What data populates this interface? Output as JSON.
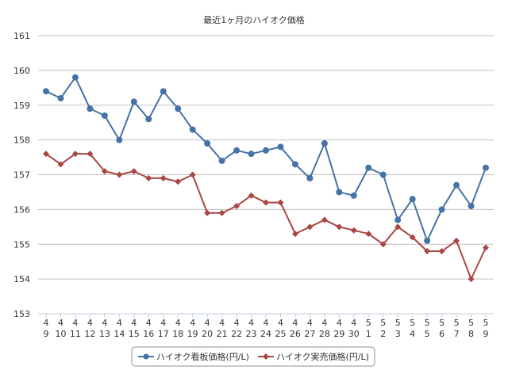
{
  "chart_data": {
    "type": "line",
    "title": "最近1ヶ月のハイオク価格",
    "xlabel": "",
    "ylabel": "",
    "ylim": [
      153,
      161
    ],
    "yticks": [
      153,
      154,
      155,
      156,
      157,
      158,
      159,
      160,
      161
    ],
    "grid": true,
    "legend_position": "bottom",
    "categories": [
      [
        "4",
        "9"
      ],
      [
        "4",
        "10"
      ],
      [
        "4",
        "11"
      ],
      [
        "4",
        "12"
      ],
      [
        "4",
        "13"
      ],
      [
        "4",
        "14"
      ],
      [
        "4",
        "15"
      ],
      [
        "4",
        "16"
      ],
      [
        "4",
        "17"
      ],
      [
        "4",
        "18"
      ],
      [
        "4",
        "19"
      ],
      [
        "4",
        "20"
      ],
      [
        "4",
        "21"
      ],
      [
        "4",
        "22"
      ],
      [
        "4",
        "23"
      ],
      [
        "4",
        "24"
      ],
      [
        "4",
        "25"
      ],
      [
        "4",
        "26"
      ],
      [
        "4",
        "27"
      ],
      [
        "4",
        "28"
      ],
      [
        "4",
        "29"
      ],
      [
        "4",
        "30"
      ],
      [
        "5",
        "1"
      ],
      [
        "5",
        "2"
      ],
      [
        "5",
        "3"
      ],
      [
        "5",
        "4"
      ],
      [
        "5",
        "5"
      ],
      [
        "5",
        "6"
      ],
      [
        "5",
        "7"
      ],
      [
        "5",
        "8"
      ],
      [
        "5",
        "9"
      ]
    ],
    "series": [
      {
        "name": "ハイオク看板価格(円/L)",
        "color": "#4572a7",
        "marker": "circle",
        "values": [
          159.4,
          159.2,
          159.8,
          158.9,
          158.7,
          158.0,
          159.1,
          158.6,
          159.4,
          158.9,
          158.3,
          157.9,
          157.4,
          157.7,
          157.6,
          157.7,
          157.8,
          157.3,
          156.9,
          157.9,
          156.5,
          156.4,
          157.2,
          157.0,
          155.7,
          156.3,
          155.1,
          156.0,
          156.7,
          156.1,
          157.2
        ]
      },
      {
        "name": "ハイオク実売価格(円/L)",
        "color": "#aa4643",
        "marker": "diamond",
        "values": [
          157.6,
          157.3,
          157.6,
          157.6,
          157.1,
          157.0,
          157.1,
          156.9,
          156.9,
          156.8,
          157.0,
          155.9,
          155.9,
          156.1,
          156.4,
          156.2,
          156.2,
          155.3,
          155.5,
          155.7,
          155.5,
          155.4,
          155.3,
          155.0,
          155.5,
          155.2,
          154.8,
          154.8,
          155.1,
          154.0,
          154.9
        ]
      }
    ]
  }
}
